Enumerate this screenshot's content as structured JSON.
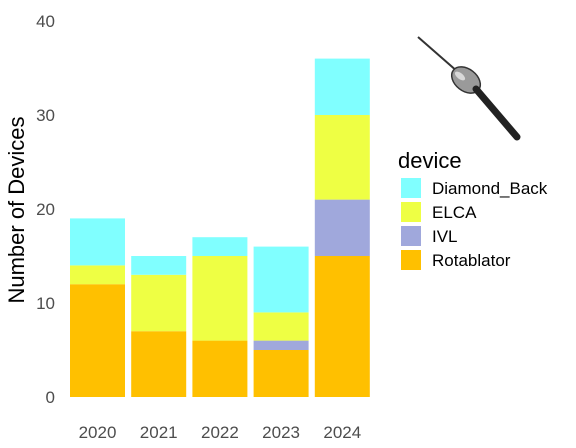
{
  "chart_data": {
    "type": "bar",
    "stacked": true,
    "categories": [
      "2020",
      "2021",
      "2022",
      "2023",
      "2024"
    ],
    "series": [
      {
        "name": "Rotablator",
        "color": "#FFC000",
        "values": [
          12,
          7,
          6,
          5,
          15
        ]
      },
      {
        "name": "IVL",
        "color": "#A0A8DC",
        "values": [
          0,
          0,
          0,
          1,
          6
        ]
      },
      {
        "name": "ELCA",
        "color": "#EEFF44",
        "values": [
          2,
          6,
          9,
          3,
          9
        ]
      },
      {
        "name": "Diamond_Back",
        "color": "#80FFFF",
        "values": [
          5,
          2,
          2,
          7,
          6
        ]
      }
    ],
    "xlabel": "",
    "ylabel": "Number of Devices",
    "ylim": [
      0,
      40
    ],
    "yticks": [
      0,
      10,
      20,
      30,
      40
    ],
    "grid": false,
    "legend": {
      "title": "device",
      "placement": "right",
      "entries": [
        "Diamond_Back",
        "ELCA",
        "IVL",
        "Rotablator"
      ]
    }
  },
  "decor": {
    "image_icon": "catheter-burr-icon"
  }
}
